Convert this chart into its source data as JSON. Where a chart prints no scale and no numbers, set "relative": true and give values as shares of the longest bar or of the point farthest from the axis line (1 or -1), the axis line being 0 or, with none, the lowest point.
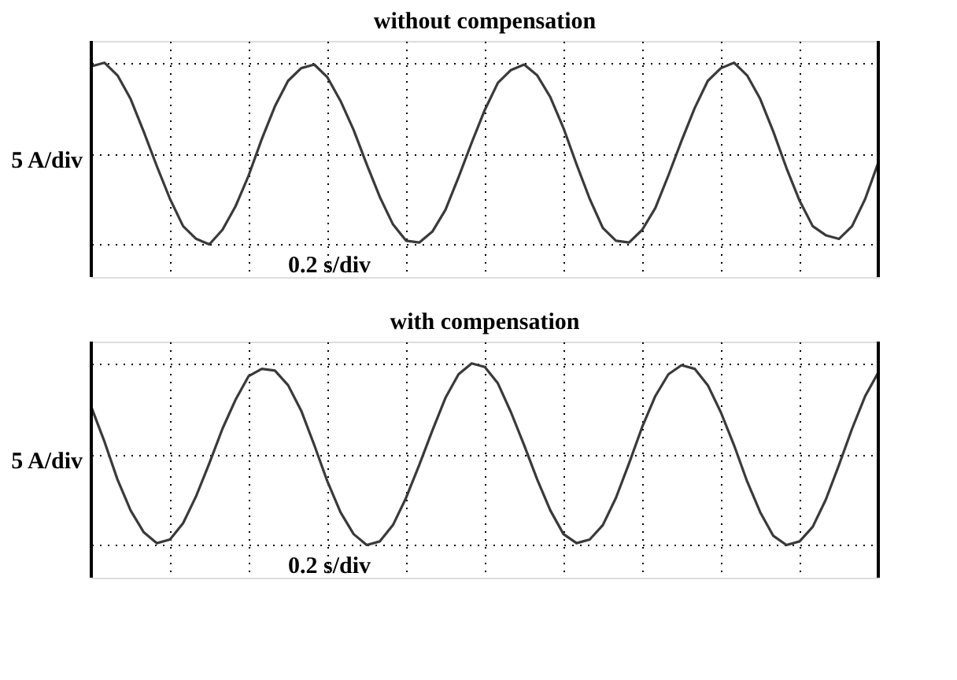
{
  "chart_data": [
    {
      "type": "line",
      "title": "without compensation",
      "ylabel": "5 A/div",
      "annotations": [
        "0.2 s/div"
      ],
      "relative": true,
      "grid": true,
      "tick_labels": false,
      "categories": [
        null,
        null,
        null,
        null,
        null,
        null,
        null,
        null,
        null,
        null,
        null,
        null,
        null,
        null,
        null,
        null,
        null,
        null,
        null,
        null,
        null,
        null,
        null,
        null,
        null,
        null,
        null,
        null,
        null,
        null,
        null,
        null,
        null,
        null,
        null,
        null,
        null,
        null,
        null,
        null,
        null,
        null,
        null,
        null,
        null,
        null,
        null,
        null,
        null,
        null,
        null,
        null,
        null,
        null,
        null,
        null,
        null,
        null,
        null,
        null,
        null
      ],
      "series": [
        {
          "color": "#3a3a3a",
          "values": [
            0.98,
            1.0,
            0.93,
            0.8,
            0.62,
            0.43,
            0.25,
            0.1,
            0.03,
            0.0,
            0.08,
            0.21,
            0.38,
            0.58,
            0.76,
            0.9,
            0.97,
            0.99,
            0.92,
            0.79,
            0.63,
            0.44,
            0.26,
            0.11,
            0.02,
            0.01,
            0.07,
            0.19,
            0.37,
            0.56,
            0.74,
            0.89,
            0.96,
            0.99,
            0.93,
            0.81,
            0.64,
            0.44,
            0.25,
            0.09,
            0.02,
            0.01,
            0.08,
            0.2,
            0.38,
            0.57,
            0.75,
            0.9,
            0.97,
            1.0,
            0.93,
            0.8,
            0.62,
            0.42,
            0.24,
            0.1,
            0.05,
            0.03,
            0.1,
            0.25,
            0.45
          ]
        }
      ]
    },
    {
      "type": "line",
      "title": "with compensation",
      "ylabel": "5 A/div",
      "annotations": [
        "0.2 s/div"
      ],
      "relative": true,
      "grid": true,
      "tick_labels": false,
      "categories": [
        null,
        null,
        null,
        null,
        null,
        null,
        null,
        null,
        null,
        null,
        null,
        null,
        null,
        null,
        null,
        null,
        null,
        null,
        null,
        null,
        null,
        null,
        null,
        null,
        null,
        null,
        null,
        null,
        null,
        null,
        null,
        null,
        null,
        null,
        null,
        null,
        null,
        null,
        null,
        null,
        null,
        null,
        null,
        null,
        null,
        null,
        null,
        null,
        null,
        null,
        null,
        null,
        null,
        null,
        null,
        null,
        null,
        null,
        null,
        null,
        null
      ],
      "series": [
        {
          "color": "#3a3a3a",
          "values": [
            0.76,
            0.57,
            0.36,
            0.19,
            0.07,
            0.01,
            0.03,
            0.12,
            0.27,
            0.45,
            0.64,
            0.8,
            0.93,
            0.97,
            0.96,
            0.88,
            0.74,
            0.55,
            0.35,
            0.18,
            0.06,
            0.0,
            0.02,
            0.11,
            0.26,
            0.44,
            0.63,
            0.81,
            0.94,
            1.0,
            0.98,
            0.89,
            0.73,
            0.55,
            0.36,
            0.19,
            0.06,
            0.01,
            0.03,
            0.11,
            0.26,
            0.45,
            0.65,
            0.82,
            0.94,
            0.99,
            0.97,
            0.88,
            0.73,
            0.55,
            0.35,
            0.18,
            0.05,
            0.0,
            0.02,
            0.1,
            0.25,
            0.44,
            0.64,
            0.82,
            0.95
          ]
        }
      ]
    }
  ]
}
